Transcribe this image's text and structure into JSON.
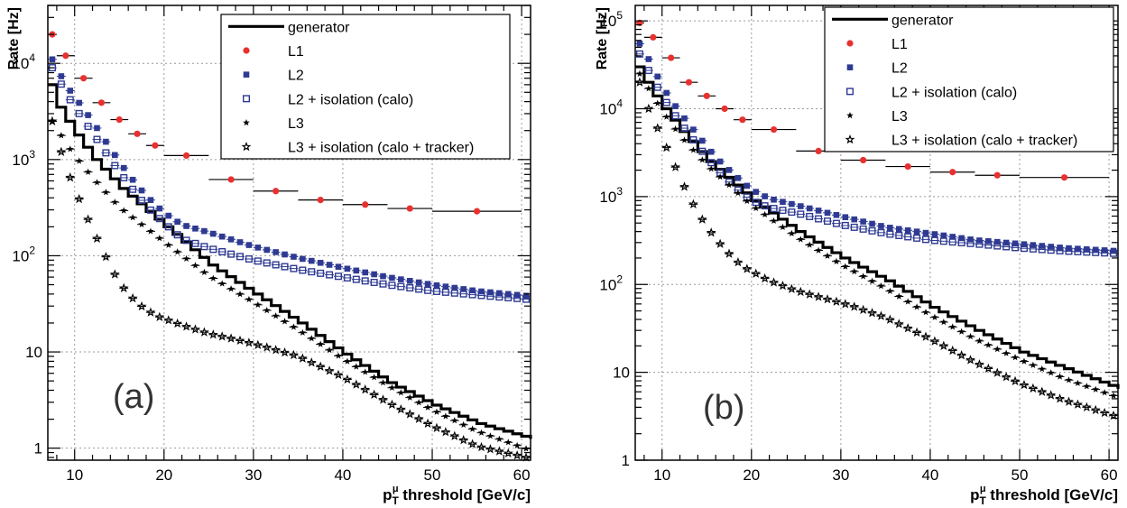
{
  "chart_data": [
    {
      "type": "scatter",
      "panel_label": "(a)",
      "ylabel": "Rate [Hz]",
      "xlabel_main": "p",
      "xlabel_sub": "T",
      "xlabel_sup": "μ",
      "xlabel_rest": " threshold [GeV/c]",
      "x_scale": "linear",
      "y_scale": "log",
      "xlim": [
        7,
        61
      ],
      "ylim": [
        0.75,
        40000
      ],
      "grid": true,
      "legend_position": "top-right",
      "x_ticks": [
        10,
        20,
        30,
        40,
        50,
        60
      ],
      "y_ticks": [
        {
          "value": 1,
          "label": "1"
        },
        {
          "value": 10,
          "label": "10"
        },
        {
          "value": 100,
          "label": "10",
          "sup": "2"
        },
        {
          "value": 1000,
          "label": "10",
          "sup": "3"
        },
        {
          "value": 10000,
          "label": "10",
          "sup": "4"
        }
      ],
      "legend": [
        {
          "key": "generator",
          "label": "generator"
        },
        {
          "key": "l1",
          "label": "L1"
        },
        {
          "key": "l2",
          "label": "L2"
        },
        {
          "key": "l2iso",
          "label": "L2 + isolation (calo)"
        },
        {
          "key": "l3",
          "label": "L3"
        },
        {
          "key": "l3iso",
          "label": "L3 + isolation (calo + tracker)"
        }
      ],
      "series": {
        "generator": {
          "anchors": [
            [
              7,
              6000
            ],
            [
              8,
              3500
            ],
            [
              9,
              2500
            ],
            [
              10,
              1800
            ],
            [
              12,
              1000
            ],
            [
              15,
              500
            ],
            [
              20,
              200
            ],
            [
              25,
              80
            ],
            [
              30,
              40
            ],
            [
              35,
              20
            ],
            [
              40,
              9.5
            ],
            [
              45,
              4.8
            ],
            [
              50,
              2.8
            ],
            [
              55,
              1.8
            ],
            [
              61,
              1.25
            ]
          ]
        },
        "l1": {
          "points": [
            [
              7.5,
              20000,
              0.5
            ],
            [
              9,
              12000,
              1
            ],
            [
              11,
              7000,
              1
            ],
            [
              13,
              3900,
              1
            ],
            [
              15,
              2600,
              1
            ],
            [
              17,
              1850,
              1
            ],
            [
              19,
              1400,
              1
            ],
            [
              22.5,
              1100,
              2.5
            ],
            [
              27.5,
              620,
              2.5
            ],
            [
              32.5,
              470,
              2.5
            ],
            [
              37.5,
              380,
              2.5
            ],
            [
              42.5,
              340,
              2.5
            ],
            [
              47.5,
              310,
              2.5
            ],
            [
              55,
              290,
              5
            ]
          ]
        },
        "l2": {
          "anchors": [
            [
              7.5,
              11000
            ],
            [
              9,
              6000
            ],
            [
              10,
              4500
            ],
            [
              12,
              2500
            ],
            [
              14,
              1300
            ],
            [
              16,
              700
            ],
            [
              18,
              420
            ],
            [
              20,
              280
            ],
            [
              22,
              210
            ],
            [
              25,
              175
            ],
            [
              30,
              125
            ],
            [
              35,
              95
            ],
            [
              40,
              75
            ],
            [
              45,
              60
            ],
            [
              50,
              50
            ],
            [
              55,
              43
            ],
            [
              61,
              38
            ]
          ]
        },
        "l2iso": {
          "anchors": [
            [
              7.5,
              9000
            ],
            [
              9,
              5000
            ],
            [
              10,
              3500
            ],
            [
              12,
              1900
            ],
            [
              14,
              1000
            ],
            [
              16,
              560
            ],
            [
              18,
              330
            ],
            [
              20,
              220
            ],
            [
              22,
              150
            ],
            [
              25,
              120
            ],
            [
              30,
              90
            ],
            [
              35,
              72
            ],
            [
              40,
              60
            ],
            [
              45,
              50
            ],
            [
              50,
              43
            ],
            [
              55,
              39
            ],
            [
              61,
              35
            ]
          ]
        },
        "l3": {
          "anchors": [
            [
              7.5,
              2500
            ],
            [
              9,
              1500
            ],
            [
              10,
              1100
            ],
            [
              12,
              650
            ],
            [
              15,
              320
            ],
            [
              20,
              140
            ],
            [
              25,
              62
            ],
            [
              30,
              33
            ],
            [
              35,
              17
            ],
            [
              40,
              8.5
            ],
            [
              45,
              4.5
            ],
            [
              50,
              2.5
            ],
            [
              55,
              1.5
            ],
            [
              61,
              0.95
            ]
          ]
        },
        "l3iso": {
          "anchors": [
            [
              7.5,
              2500
            ],
            [
              8.5,
              1200
            ],
            [
              9.5,
              650
            ],
            [
              11,
              300
            ],
            [
              13,
              120
            ],
            [
              15,
              52
            ],
            [
              17,
              32
            ],
            [
              19,
              24
            ],
            [
              22,
              19
            ],
            [
              25,
              15.5
            ],
            [
              28,
              13.5
            ],
            [
              31,
              11.5
            ],
            [
              35,
              9
            ],
            [
              40,
              5.5
            ],
            [
              45,
              3
            ],
            [
              50,
              1.7
            ],
            [
              55,
              1.05
            ],
            [
              61,
              0.78
            ]
          ]
        }
      }
    },
    {
      "type": "scatter",
      "panel_label": "(b)",
      "ylabel": "Rate [Hz]",
      "xlabel_main": "p",
      "xlabel_sub": "T",
      "xlabel_sup": "μ",
      "xlabel_rest": " threshold [GeV/c]",
      "x_scale": "linear",
      "y_scale": "log",
      "xlim": [
        7,
        61
      ],
      "ylim": [
        1,
        150000
      ],
      "grid": true,
      "legend_position": "top-right",
      "x_ticks": [
        10,
        20,
        30,
        40,
        50,
        60
      ],
      "y_ticks": [
        {
          "value": 1,
          "label": "1"
        },
        {
          "value": 10,
          "label": "10"
        },
        {
          "value": 100,
          "label": "10",
          "sup": "2"
        },
        {
          "value": 1000,
          "label": "10",
          "sup": "3"
        },
        {
          "value": 10000,
          "label": "10",
          "sup": "4"
        },
        {
          "value": 100000,
          "label": "10",
          "sup": "5"
        }
      ],
      "legend": [
        {
          "key": "generator",
          "label": "generator"
        },
        {
          "key": "l1",
          "label": "L1"
        },
        {
          "key": "l2",
          "label": "L2"
        },
        {
          "key": "l2iso",
          "label": "L2 + isolation (calo)"
        },
        {
          "key": "l3",
          "label": "L3"
        },
        {
          "key": "l3iso",
          "label": "L3 + isolation (calo + tracker)"
        }
      ],
      "series": {
        "generator": {
          "anchors": [
            [
              7,
              30000
            ],
            [
              8,
              20000
            ],
            [
              9,
              14000
            ],
            [
              10,
              10000
            ],
            [
              12,
              5500
            ],
            [
              15,
              2500
            ],
            [
              20,
              900
            ],
            [
              25,
              400
            ],
            [
              30,
              200
            ],
            [
              35,
              110
            ],
            [
              40,
              55
            ],
            [
              45,
              30
            ],
            [
              50,
              17
            ],
            [
              55,
              11
            ],
            [
              61,
              6.5
            ]
          ]
        },
        "l1": {
          "points": [
            [
              7.5,
              95000,
              0.5
            ],
            [
              9,
              65000,
              1
            ],
            [
              11,
              38000,
              1
            ],
            [
              13,
              20000,
              1
            ],
            [
              15,
              14000,
              1
            ],
            [
              17,
              10000,
              1
            ],
            [
              19,
              7500,
              1
            ],
            [
              22.5,
              5800,
              2.5
            ],
            [
              27.5,
              3300,
              2.5
            ],
            [
              32.5,
              2600,
              2.5
            ],
            [
              37.5,
              2200,
              2.5
            ],
            [
              42.5,
              1900,
              2.5
            ],
            [
              47.5,
              1750,
              2.5
            ],
            [
              55,
              1650,
              5
            ]
          ]
        },
        "l2": {
          "anchors": [
            [
              7.5,
              55000
            ],
            [
              9,
              30000
            ],
            [
              10,
              18000
            ],
            [
              12,
              9000
            ],
            [
              14,
              5000
            ],
            [
              16,
              2800
            ],
            [
              18,
              1800
            ],
            [
              20,
              1200
            ],
            [
              22,
              950
            ],
            [
              25,
              800
            ],
            [
              30,
              600
            ],
            [
              35,
              450
            ],
            [
              40,
              380
            ],
            [
              45,
              320
            ],
            [
              50,
              290
            ],
            [
              55,
              260
            ],
            [
              61,
              240
            ]
          ]
        },
        "l2iso": {
          "anchors": [
            [
              7.5,
              42000
            ],
            [
              9,
              22000
            ],
            [
              10,
              14000
            ],
            [
              12,
              7000
            ],
            [
              14,
              3800
            ],
            [
              16,
              2100
            ],
            [
              18,
              1300
            ],
            [
              20,
              900
            ],
            [
              22,
              750
            ],
            [
              25,
              650
            ],
            [
              30,
              480
            ],
            [
              35,
              380
            ],
            [
              40,
              320
            ],
            [
              45,
              290
            ],
            [
              50,
              260
            ],
            [
              55,
              240
            ],
            [
              61,
              225
            ]
          ]
        },
        "l3": {
          "anchors": [
            [
              7.5,
              25000
            ],
            [
              9,
              14000
            ],
            [
              10,
              9500
            ],
            [
              12,
              5000
            ],
            [
              15,
              2300
            ],
            [
              20,
              800
            ],
            [
              25,
              350
            ],
            [
              30,
              170
            ],
            [
              35,
              90
            ],
            [
              40,
              45
            ],
            [
              45,
              24
            ],
            [
              50,
              14
            ],
            [
              55,
              8.5
            ],
            [
              61,
              5.2
            ]
          ]
        },
        "l3iso": {
          "anchors": [
            [
              7.5,
              20000
            ],
            [
              8.5,
              10000
            ],
            [
              9.5,
              6000
            ],
            [
              11,
              2800
            ],
            [
              13,
              1000
            ],
            [
              15,
              450
            ],
            [
              17,
              250
            ],
            [
              19,
              160
            ],
            [
              22,
              110
            ],
            [
              25,
              85
            ],
            [
              28,
              70
            ],
            [
              31,
              58
            ],
            [
              35,
              42
            ],
            [
              40,
              24
            ],
            [
              45,
              13
            ],
            [
              50,
              7.5
            ],
            [
              55,
              4.8
            ],
            [
              61,
              3.1
            ]
          ]
        }
      }
    }
  ]
}
